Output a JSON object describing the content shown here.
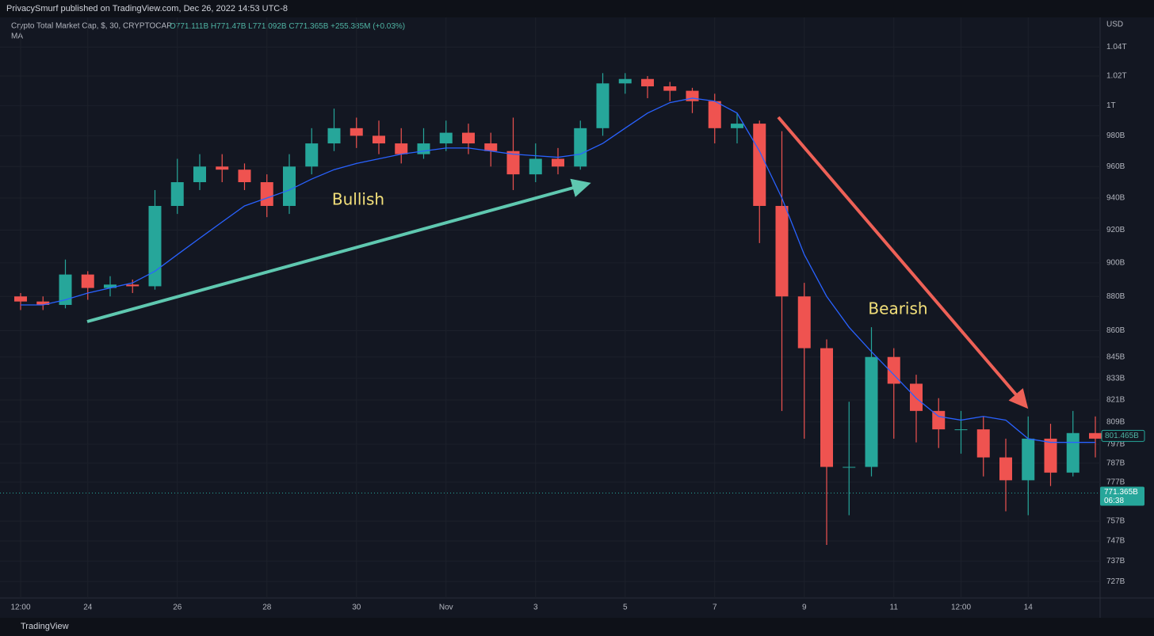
{
  "chart_data": {
    "type": "candlestick",
    "publisher": "PrivacySmurf published on TradingView.com, Dec 26, 2022 14:53 UTC-8",
    "title": "Crypto Total Market Cap, $, 30, CRYPTOCAP",
    "ohlc_legend": [
      "O771.111B",
      "H771.47B",
      "L771.092B",
      "C771.365B",
      "+255.385M (+0.03%)"
    ],
    "ma_name": "MA",
    "y_unit": "USD",
    "brand": "TradingView",
    "annotations": [
      "Bullish",
      "Bearish"
    ],
    "categories": [
      "12:00",
      null,
      null,
      "24",
      null,
      null,
      null,
      "26",
      null,
      null,
      null,
      "28",
      null,
      null,
      null,
      "30",
      null,
      null,
      null,
      "Nov",
      null,
      null,
      null,
      "3",
      null,
      null,
      null,
      "5",
      null,
      null,
      null,
      "7",
      null,
      null,
      null,
      "9",
      null,
      null,
      null,
      "11",
      null,
      null,
      "12:00",
      null,
      null,
      "14",
      null,
      null,
      null
    ],
    "open": [
      880,
      877,
      875,
      893,
      885,
      887,
      886,
      935,
      950,
      960,
      958,
      950,
      935,
      960,
      975,
      985,
      980,
      975,
      968,
      975,
      982,
      975,
      970,
      955,
      965,
      960,
      985,
      1015,
      1018,
      1013,
      1010,
      1003,
      985,
      988,
      935,
      880,
      850,
      785,
      785,
      845,
      830,
      815,
      805,
      805,
      790,
      778,
      800,
      782,
      803
    ],
    "high": [
      882,
      880,
      902,
      895,
      892,
      890,
      945,
      965,
      968,
      968,
      962,
      955,
      968,
      985,
      998,
      992,
      990,
      985,
      985,
      990,
      988,
      982,
      992,
      975,
      972,
      990,
      1022,
      1022,
      1020,
      1016,
      1012,
      1008,
      995,
      990,
      983,
      888,
      855,
      820,
      862,
      850,
      835,
      822,
      815,
      812,
      800,
      812,
      808,
      815,
      812
    ],
    "low": [
      872,
      872,
      873,
      878,
      880,
      882,
      884,
      930,
      945,
      950,
      945,
      928,
      930,
      955,
      970,
      972,
      968,
      962,
      965,
      970,
      968,
      960,
      945,
      950,
      955,
      958,
      980,
      1008,
      1005,
      1003,
      995,
      975,
      975,
      912,
      815,
      800,
      745,
      760,
      780,
      800,
      798,
      795,
      792,
      780,
      762,
      760,
      775,
      780,
      790
    ],
    "close": [
      877,
      875,
      893,
      885,
      887,
      886,
      935,
      950,
      960,
      958,
      950,
      935,
      960,
      975,
      985,
      980,
      975,
      968,
      975,
      982,
      975,
      970,
      955,
      965,
      960,
      985,
      1015,
      1018,
      1013,
      1010,
      1003,
      985,
      988,
      935,
      880,
      850,
      785,
      785,
      845,
      830,
      815,
      805,
      805,
      790,
      778,
      800,
      782,
      803,
      800
    ],
    "up_color": "#26a69a",
    "down_color": "#ef5350",
    "ma": {
      "name": "MA",
      "color": "#2962ff",
      "values": [
        875,
        875,
        878,
        882,
        885,
        888,
        895,
        905,
        915,
        925,
        935,
        940,
        945,
        952,
        958,
        962,
        965,
        968,
        970,
        972,
        972,
        970,
        968,
        967,
        966,
        968,
        975,
        985,
        995,
        1002,
        1005,
        1003,
        995,
        970,
        940,
        905,
        880,
        862,
        848,
        835,
        822,
        812,
        810,
        812,
        810,
        800,
        798,
        798,
        798
      ]
    },
    "ylim": [
      719,
      1062
    ],
    "ylog": true,
    "yticks": [
      {
        "value": 727,
        "label": "727B"
      },
      {
        "value": 737,
        "label": "737B"
      },
      {
        "value": 747,
        "label": "747B"
      },
      {
        "value": 757,
        "label": "757B"
      },
      {
        "value": 777,
        "label": "777B"
      },
      {
        "value": 787,
        "label": "787B"
      },
      {
        "value": 797,
        "label": "797B"
      },
      {
        "value": 809,
        "label": "809B"
      },
      {
        "value": 821,
        "label": "821B"
      },
      {
        "value": 833,
        "label": "833B"
      },
      {
        "value": 845,
        "label": "845B"
      },
      {
        "value": 860,
        "label": "860B"
      },
      {
        "value": 880,
        "label": "880B"
      },
      {
        "value": 900,
        "label": "900B"
      },
      {
        "value": 920,
        "label": "920B"
      },
      {
        "value": 940,
        "label": "940B"
      },
      {
        "value": 960,
        "label": "960B"
      },
      {
        "value": 980,
        "label": "980B"
      },
      {
        "value": 1000,
        "label": "1T"
      },
      {
        "value": 1020,
        "label": "1.02T"
      },
      {
        "value": 1040,
        "label": "1.04T"
      }
    ],
    "grid": true,
    "last_price": {
      "value": 771.365,
      "label": "771.365B",
      "countdown": "06:38"
    },
    "ma_price": {
      "value": 801.465,
      "label": "801.465B"
    }
  }
}
